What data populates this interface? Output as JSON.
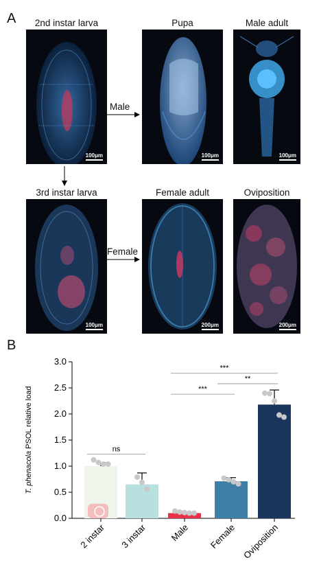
{
  "panel_a": {
    "letter": "A",
    "images": [
      {
        "title": "2nd instar larva",
        "scale": "100μm"
      },
      {
        "title": "Pupa",
        "scale": "100μm"
      },
      {
        "title": "Male adult",
        "scale": "100μm"
      },
      {
        "title": "3rd instar larva",
        "scale": "100μm"
      },
      {
        "title": "Female adult",
        "scale": "200μm"
      },
      {
        "title": "Oviposition",
        "scale": "200μm"
      }
    ],
    "arrows": {
      "male": "Male",
      "female": "Female"
    }
  },
  "panel_b": {
    "letter": "B"
  },
  "chart_data": {
    "type": "bar",
    "categories": [
      "2 instar",
      "3 instar",
      "Male",
      "Female",
      "Oviposition"
    ],
    "values": [
      1.0,
      0.65,
      0.1,
      0.71,
      2.18
    ],
    "errors": [
      0.07,
      0.22,
      0.02,
      0.07,
      0.28
    ],
    "points": [
      [
        1.12,
        1.07,
        1.04,
        1.04
      ],
      [
        0.79,
        0.69,
        0.56
      ],
      [
        0.14,
        0.12,
        0.11,
        0.1,
        0.1
      ],
      [
        0.77,
        0.74,
        0.7,
        0.66
      ],
      [
        2.4,
        2.39,
        2.25,
        1.98,
        1.94
      ]
    ],
    "colors": [
      "#eef6ec",
      "#b8e0e0",
      "#e8304a",
      "#3e7fa6",
      "#1b365d"
    ],
    "ylabel_species": "T. phenacola",
    "ylabel_rest": " PSOL relative load",
    "ylim": [
      0,
      3.0
    ],
    "yticks": [
      "0.0",
      "0.5",
      "1.0",
      "1.5",
      "2.0",
      "2.5",
      "3.0"
    ],
    "significance": [
      {
        "from": "2 instar",
        "to": "3 instar",
        "label": "ns"
      },
      {
        "from": "Male",
        "to": "Oviposition",
        "label": "***"
      },
      {
        "from": "Male",
        "to": "Female",
        "label": "***"
      },
      {
        "from": "Female",
        "to": "Oviposition",
        "label": "**"
      }
    ]
  }
}
